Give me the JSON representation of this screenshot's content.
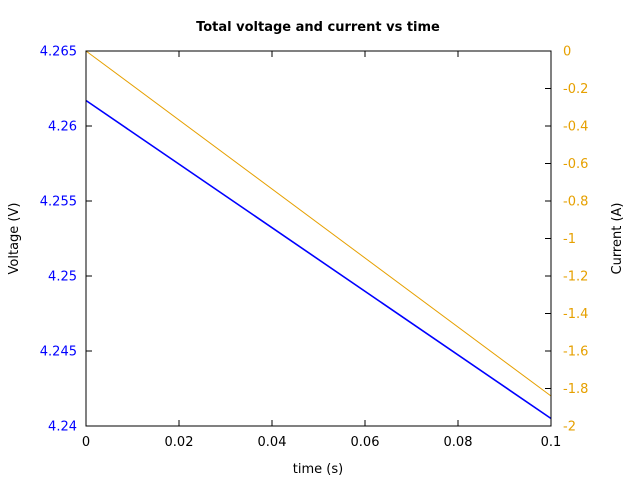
{
  "chart_data": {
    "type": "line",
    "title": "Total voltage and current vs time",
    "xlabel": "time (s)",
    "ylabel_left": "Voltage (V)",
    "ylabel_right": "Current (A)",
    "xlim": [
      0,
      0.1
    ],
    "ylim_left": [
      4.24,
      4.265
    ],
    "ylim_right": [
      -2,
      0
    ],
    "x_ticks": [
      "0",
      "0.02",
      "0.04",
      "0.06",
      "0.08",
      "0.1"
    ],
    "y_left_ticks": [
      "4.24",
      "4.245",
      "4.25",
      "4.255",
      "4.26",
      "4.265"
    ],
    "y_right_ticks": [
      "-2",
      "-1.8",
      "-1.6",
      "-1.4",
      "-1.2",
      "-1",
      "-0.8",
      "-0.6",
      "-0.4",
      "-0.2",
      "0"
    ],
    "grid": false,
    "legend": false,
    "series": [
      {
        "axis": "left",
        "color": "#0000ff",
        "x": [
          0,
          0.1
        ],
        "y": [
          4.2617,
          4.2405
        ]
      },
      {
        "axis": "right",
        "color": "#e6a000",
        "x": [
          0,
          0.1
        ],
        "y": [
          0,
          -1.84
        ]
      }
    ],
    "colors": {
      "left_axis": "#0000ff",
      "right_axis": "#e6a000",
      "frame": "#000000"
    }
  }
}
